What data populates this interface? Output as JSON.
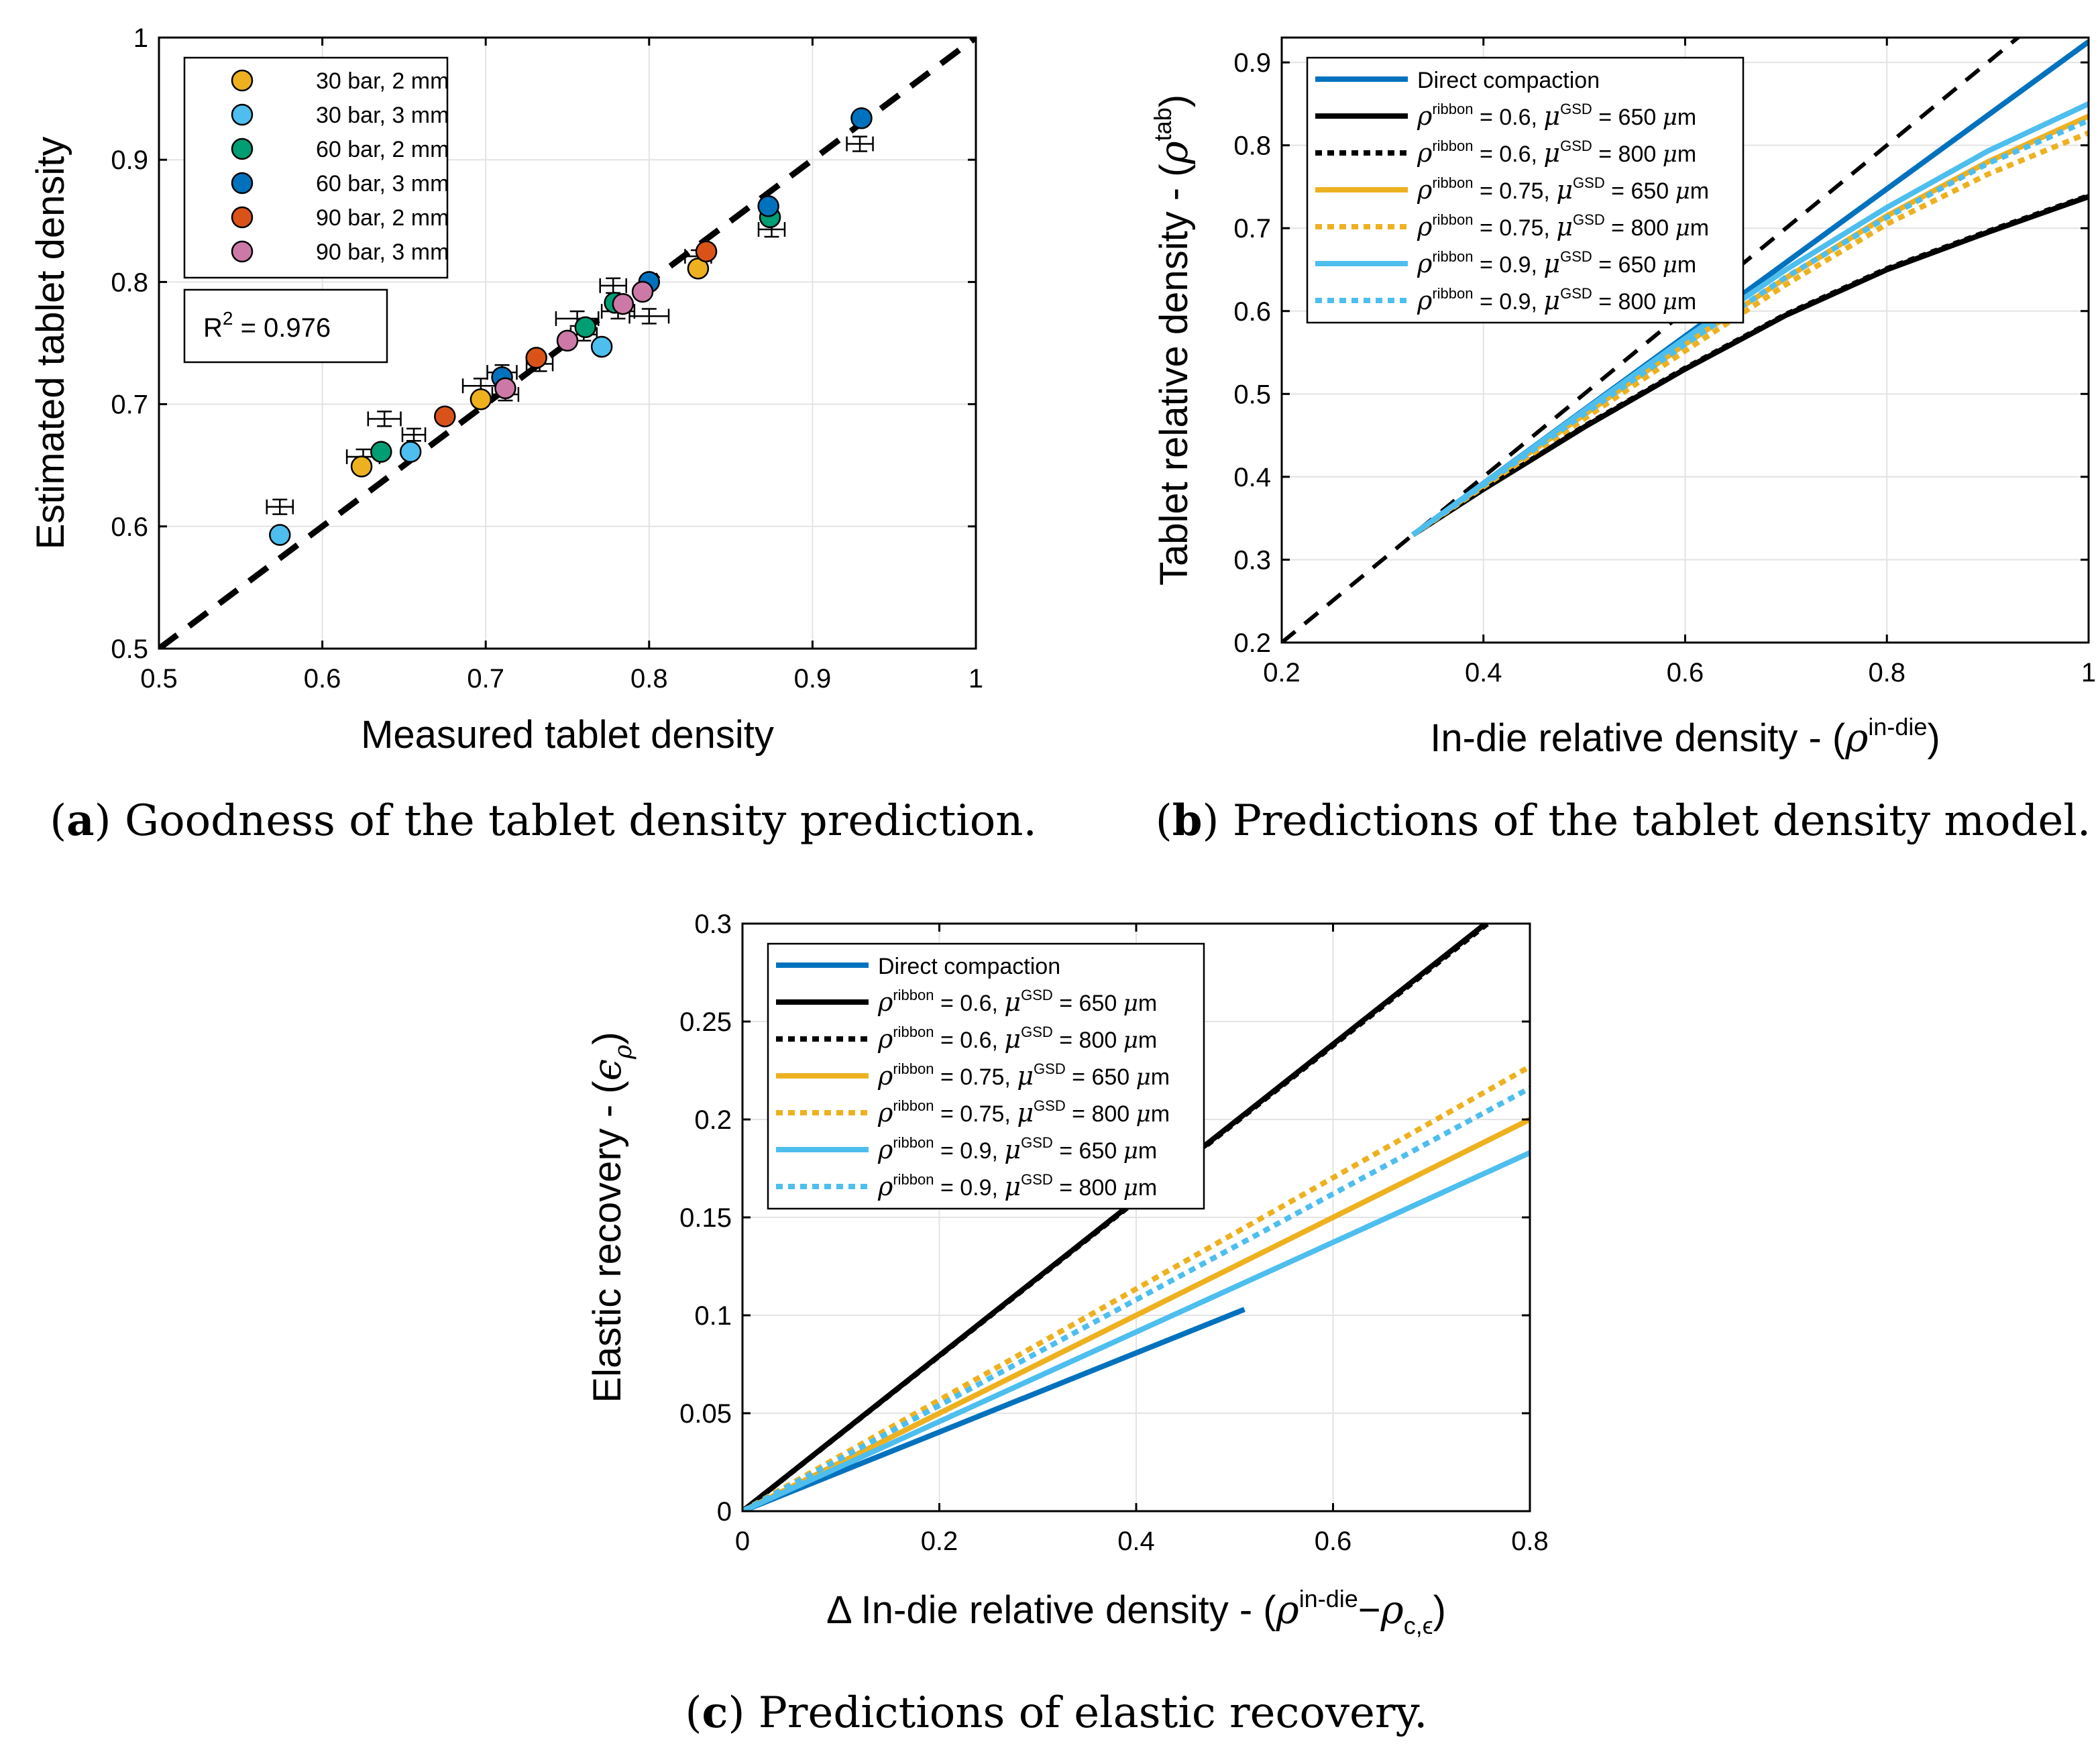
{
  "chart_data": [
    {
      "id": "a",
      "type": "scatter",
      "caption_label": "(a)",
      "caption_text": " Goodness of the tablet density prediction.",
      "xlabel": "Measured tablet density",
      "ylabel": "Estimated tablet density",
      "xlim": [
        0.5,
        1
      ],
      "ylim": [
        0.5,
        1
      ],
      "xticks": [
        0.5,
        0.6,
        0.7,
        0.8,
        0.9,
        1
      ],
      "yticks": [
        0.5,
        0.6,
        0.7,
        0.8,
        0.9,
        1
      ],
      "xtick_labels": [
        "0.5",
        "0.6",
        "0.7",
        "0.8",
        "0.9",
        "1"
      ],
      "ytick_labels": [
        "0.5",
        "0.6",
        "0.7",
        "0.8",
        "0.9",
        "1"
      ],
      "grid": true,
      "legend_position": "top-left",
      "r2_text": "= 0.976",
      "r2_label": "R",
      "r2_sup": "2",
      "identity_line": [
        [
          0.5,
          0.5
        ],
        [
          1,
          1
        ]
      ],
      "series": [
        {
          "name": "30 bar, 2 mm",
          "color": "#EDB120",
          "points": [
            [
              0.624,
              0.649
            ],
            [
              0.697,
              0.704
            ],
            [
              0.83,
              0.811
            ]
          ]
        },
        {
          "name": "30 bar, 3 mm",
          "color": "#4DBEEE",
          "points": [
            [
              0.574,
              0.593
            ],
            [
              0.654,
              0.661
            ],
            [
              0.771,
              0.747
            ]
          ]
        },
        {
          "name": "60 bar, 2 mm",
          "color": "#009E73",
          "points": [
            [
              0.636,
              0.661
            ],
            [
              0.761,
              0.763
            ],
            [
              0.779,
              0.783
            ],
            [
              0.874,
              0.853
            ]
          ]
        },
        {
          "name": "60 bar, 3 mm",
          "color": "#0072BD",
          "points": [
            [
              0.71,
              0.722
            ],
            [
              0.8,
              0.8
            ],
            [
              0.873,
              0.862
            ],
            [
              0.93,
              0.934
            ]
          ]
        },
        {
          "name": "90 bar, 2 mm",
          "color": "#D95319",
          "points": [
            [
              0.675,
              0.69
            ],
            [
              0.731,
              0.738
            ],
            [
              0.835,
              0.825
            ]
          ]
        },
        {
          "name": "90 bar, 3 mm",
          "color": "#CC79A7",
          "points": [
            [
              0.712,
              0.713
            ],
            [
              0.75,
              0.752
            ],
            [
              0.784,
              0.782
            ],
            [
              0.796,
              0.792
            ]
          ]
        }
      ],
      "errorbars": [
        {
          "x": 0.574,
          "y": 0.616,
          "xerr": 0.008,
          "yerr": 0.006
        },
        {
          "x": 0.625,
          "y": 0.657,
          "xerr": 0.01,
          "yerr": 0.006
        },
        {
          "x": 0.638,
          "y": 0.688,
          "xerr": 0.01,
          "yerr": 0.006
        },
        {
          "x": 0.656,
          "y": 0.675,
          "xerr": 0.007,
          "yerr": 0.005
        },
        {
          "x": 0.697,
          "y": 0.715,
          "xerr": 0.011,
          "yerr": 0.006
        },
        {
          "x": 0.71,
          "y": 0.726,
          "xerr": 0.009,
          "yerr": 0.006
        },
        {
          "x": 0.712,
          "y": 0.708,
          "xerr": 0.008,
          "yerr": 0.005
        },
        {
          "x": 0.733,
          "y": 0.733,
          "xerr": 0.008,
          "yerr": 0.006
        },
        {
          "x": 0.756,
          "y": 0.77,
          "xerr": 0.013,
          "yerr": 0.006
        },
        {
          "x": 0.76,
          "y": 0.757,
          "xerr": 0.008,
          "yerr": 0.005
        },
        {
          "x": 0.778,
          "y": 0.797,
          "xerr": 0.008,
          "yerr": 0.006
        },
        {
          "x": 0.781,
          "y": 0.776,
          "xerr": 0.01,
          "yerr": 0.006
        },
        {
          "x": 0.8,
          "y": 0.772,
          "xerr": 0.012,
          "yerr": 0.006
        },
        {
          "x": 0.83,
          "y": 0.821,
          "xerr": 0.008,
          "yerr": 0.005
        },
        {
          "x": 0.875,
          "y": 0.843,
          "xerr": 0.008,
          "yerr": 0.006
        },
        {
          "x": 0.929,
          "y": 0.913,
          "xerr": 0.008,
          "yerr": 0.006
        }
      ]
    },
    {
      "id": "b",
      "type": "line",
      "caption_label": "(b)",
      "caption_text": " Predictions of the tablet density model.",
      "xlabel": "In-die relative density - (",
      "xlabel_sym": "ρ",
      "xlabel_sup": "in-die",
      "xlabel_end": ")",
      "ylabel": "Tablet relative density - (",
      "ylabel_sym": "ρ",
      "ylabel_sup": "tab",
      "ylabel_end": ")",
      "xlim": [
        0.2,
        1
      ],
      "ylim": [
        0.2,
        0.93
      ],
      "xticks": [
        0.2,
        0.4,
        0.6,
        0.8,
        1
      ],
      "yticks": [
        0.2,
        0.3,
        0.4,
        0.5,
        0.6,
        0.7,
        0.8,
        0.9
      ],
      "xtick_labels": [
        "0.2",
        "0.4",
        "0.6",
        "0.8",
        "1"
      ],
      "ytick_labels": [
        "0.2",
        "0.3",
        "0.4",
        "0.5",
        "0.6",
        "0.7",
        "0.8",
        "0.9"
      ],
      "grid": true,
      "legend_position": "top-left",
      "identity_line": [
        [
          0.2,
          0.2
        ],
        [
          1,
          1
        ]
      ],
      "series": [
        {
          "name": "Direct compaction",
          "color": "#0072BD",
          "dash": false,
          "x": [
            0.33,
            1.0
          ],
          "y": [
            0.33,
            0.925
          ]
        },
        {
          "name": "= 0.6,   = 650 μm",
          "rho": "0.6",
          "mu": "650",
          "color": "#000000",
          "dash": false,
          "x": [
            0.33,
            0.4,
            0.5,
            0.6,
            0.7,
            0.8,
            0.9,
            1.0
          ],
          "y": [
            0.33,
            0.385,
            0.46,
            0.53,
            0.595,
            0.65,
            0.695,
            0.738
          ]
        },
        {
          "name": "= 0.6,   = 800 μm",
          "rho": "0.6",
          "mu": "800",
          "color": "#000000",
          "dash": true,
          "x": [
            0.33,
            0.4,
            0.5,
            0.6,
            0.7,
            0.8,
            0.9,
            1.0
          ],
          "y": [
            0.33,
            0.386,
            0.461,
            0.531,
            0.596,
            0.651,
            0.696,
            0.739
          ]
        },
        {
          "name": "= 0.75,   = 650 μm",
          "rho": "0.75",
          "mu": "650",
          "color": "#EDB120",
          "dash": false,
          "x": [
            0.33,
            0.4,
            0.5,
            0.6,
            0.7,
            0.8,
            0.9,
            1.0
          ],
          "y": [
            0.33,
            0.39,
            0.475,
            0.56,
            0.64,
            0.715,
            0.78,
            0.835
          ]
        },
        {
          "name": "= 0.75,   = 800 μm",
          "rho": "0.75",
          "mu": "800",
          "color": "#EDB120",
          "dash": true,
          "x": [
            0.33,
            0.4,
            0.5,
            0.6,
            0.7,
            0.8,
            0.9,
            1.0
          ],
          "y": [
            0.33,
            0.388,
            0.47,
            0.552,
            0.632,
            0.705,
            0.765,
            0.815
          ]
        },
        {
          "name": "= 0.9,   = 650 μm",
          "rho": "0.9",
          "mu": "650",
          "color": "#4DBEEE",
          "dash": false,
          "x": [
            0.33,
            0.4,
            0.5,
            0.6,
            0.7,
            0.8,
            0.9,
            1.0
          ],
          "y": [
            0.33,
            0.392,
            0.48,
            0.567,
            0.65,
            0.725,
            0.793,
            0.85
          ]
        },
        {
          "name": "= 0.9,   = 800 μm",
          "rho": "0.9",
          "mu": "800",
          "color": "#4DBEEE",
          "dash": true,
          "x": [
            0.33,
            0.4,
            0.5,
            0.6,
            0.7,
            0.8,
            0.9,
            1.0
          ],
          "y": [
            0.33,
            0.39,
            0.476,
            0.56,
            0.641,
            0.713,
            0.778,
            0.83
          ]
        }
      ],
      "legend_rho": "ρ",
      "legend_rho_sup": "ribbon",
      "legend_mu": "μ",
      "legend_mu_sup": "GSD"
    },
    {
      "id": "c",
      "type": "line",
      "caption_label": "(c)",
      "caption_text": " Predictions of elastic recovery.",
      "xlabel": "Δ In-die relative density - (",
      "xlabel_sym": "ρ",
      "xlabel_sup": "in-die",
      "xlabel_mid": "−ρ",
      "xlabel_sub": "c,ϵ",
      "xlabel_end": ")",
      "ylabel": "Elastic recovery - (",
      "ylabel_sym": "ϵ",
      "ylabel_sub": "ρ",
      "ylabel_end": ")",
      "xlim": [
        0,
        0.8
      ],
      "ylim": [
        0,
        0.3
      ],
      "xticks": [
        0,
        0.2,
        0.4,
        0.6,
        0.8
      ],
      "yticks": [
        0,
        0.05,
        0.1,
        0.15,
        0.2,
        0.25,
        0.3
      ],
      "xtick_labels": [
        "0",
        "0.2",
        "0.4",
        "0.6",
        "0.8"
      ],
      "ytick_labels": [
        "0",
        "0.05",
        "0.1",
        "0.15",
        "0.2",
        "0.25",
        "0.3"
      ],
      "grid": true,
      "legend_position": "top-left",
      "series": [
        {
          "name": "Direct compaction",
          "color": "#0072BD",
          "dash": false,
          "x": [
            0,
            0.51
          ],
          "y": [
            0,
            0.103
          ]
        },
        {
          "name": "= 0.6,   = 650 μm",
          "rho": "0.6",
          "mu": "650",
          "color": "#000000",
          "dash": false,
          "x": [
            0,
            0.755
          ],
          "y": [
            0,
            0.3
          ]
        },
        {
          "name": "= 0.6,   = 800 μm",
          "rho": "0.6",
          "mu": "800",
          "color": "#000000",
          "dash": true,
          "x": [
            0,
            0.757
          ],
          "y": [
            0,
            0.3
          ]
        },
        {
          "name": "= 0.75,   = 650 μm",
          "rho": "0.75",
          "mu": "650",
          "color": "#EDB120",
          "dash": false,
          "x": [
            0,
            0.8
          ],
          "y": [
            0,
            0.2
          ]
        },
        {
          "name": "= 0.75,   = 800 μm",
          "rho": "0.75",
          "mu": "800",
          "color": "#EDB120",
          "dash": true,
          "x": [
            0,
            0.8
          ],
          "y": [
            0,
            0.227
          ]
        },
        {
          "name": "= 0.9,   = 650 μm",
          "rho": "0.9",
          "mu": "650",
          "color": "#4DBEEE",
          "dash": false,
          "x": [
            0,
            0.8
          ],
          "y": [
            0,
            0.183
          ]
        },
        {
          "name": "= 0.9,   = 800 μm",
          "rho": "0.9",
          "mu": "800",
          "color": "#4DBEEE",
          "dash": true,
          "x": [
            0,
            0.8
          ],
          "y": [
            0,
            0.216
          ]
        }
      ],
      "legend_rho": "ρ",
      "legend_rho_sup": "ribbon",
      "legend_mu": "μ",
      "legend_mu_sup": "GSD"
    }
  ]
}
